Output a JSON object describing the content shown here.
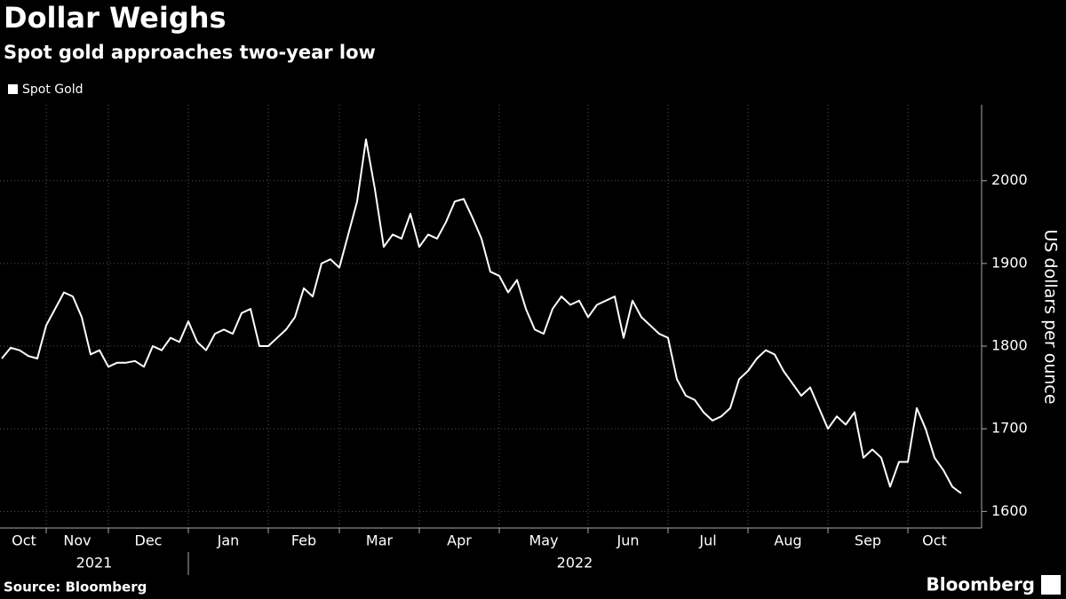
{
  "chart_data": {
    "type": "line",
    "title": "Dollar Weighs",
    "subtitle": "Spot gold approaches two-year low",
    "y_axis_label": "US dollars per ounce",
    "source": "Source: Bloomberg",
    "brand": "Bloomberg",
    "years": [
      "2021",
      "2022"
    ],
    "categories": [
      "Oct",
      null,
      null,
      null,
      null,
      "Nov",
      null,
      null,
      null,
      null,
      null,
      null,
      "Dec",
      null,
      null,
      null,
      null,
      null,
      null,
      null,
      null,
      "Jan",
      null,
      null,
      null,
      null,
      null,
      null,
      null,
      null,
      "Feb",
      null,
      null,
      null,
      null,
      null,
      null,
      null,
      "Mar",
      null,
      null,
      null,
      null,
      null,
      null,
      null,
      null,
      "Apr",
      null,
      null,
      null,
      null,
      null,
      null,
      null,
      null,
      "May",
      null,
      null,
      null,
      null,
      null,
      null,
      null,
      null,
      null,
      "Jun",
      null,
      null,
      null,
      null,
      null,
      null,
      null,
      null,
      "Jul",
      null,
      null,
      null,
      null,
      null,
      null,
      null,
      null,
      "Aug",
      null,
      null,
      null,
      null,
      null,
      null,
      null,
      null,
      "Sep",
      null,
      null,
      null,
      null,
      null,
      null,
      null,
      null,
      "Oct",
      null,
      null,
      null,
      null,
      null,
      null
    ],
    "series": [
      {
        "name": "Spot Gold",
        "color": "#ffffff",
        "values": [
          1785,
          1798,
          1795,
          1788,
          1785,
          1825,
          1845,
          1865,
          1860,
          1835,
          1790,
          1795,
          1775,
          1780,
          1780,
          1782,
          1775,
          1800,
          1795,
          1810,
          1805,
          1830,
          1805,
          1795,
          1815,
          1820,
          1815,
          1840,
          1845,
          1800,
          1800,
          1810,
          1820,
          1835,
          1870,
          1860,
          1900,
          1905,
          1895,
          1935,
          1975,
          2050,
          1990,
          1920,
          1935,
          1930,
          1960,
          1920,
          1935,
          1930,
          1950,
          1975,
          1978,
          1955,
          1930,
          1890,
          1885,
          1865,
          1880,
          1845,
          1820,
          1815,
          1845,
          1860,
          1850,
          1855,
          1835,
          1850,
          1855,
          1860,
          1810,
          1855,
          1835,
          1825,
          1815,
          1810,
          1760,
          1740,
          1735,
          1720,
          1710,
          1715,
          1725,
          1760,
          1770,
          1785,
          1795,
          1790,
          1770,
          1755,
          1740,
          1750,
          1725,
          1700,
          1715,
          1705,
          1720,
          1665,
          1675,
          1665,
          1630,
          1660,
          1660,
          1725,
          1700,
          1665,
          1650,
          1630,
          1622
        ]
      }
    ],
    "ylim": [
      1580,
      2092
    ],
    "yticks": [
      1600,
      1700,
      1800,
      1900,
      2000
    ],
    "grid": true
  }
}
